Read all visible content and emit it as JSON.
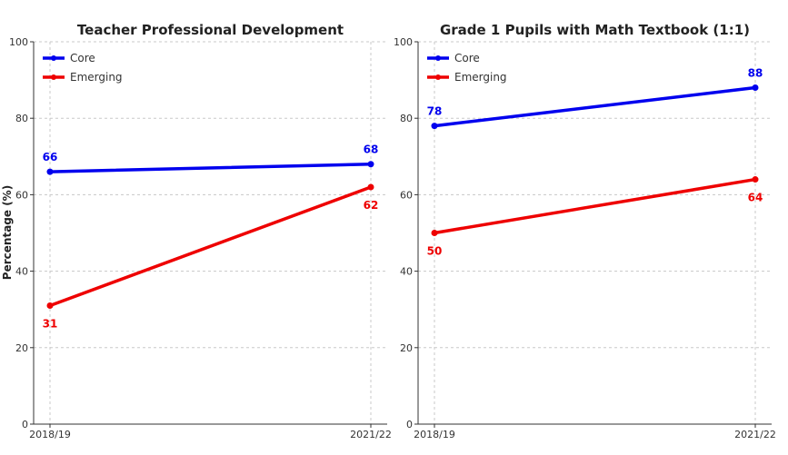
{
  "ylabel": "Percentage (%)",
  "colors": {
    "Core": "#0000ee",
    "Emerging": "#ee0000"
  },
  "chart_data": [
    {
      "type": "line",
      "title": "Teacher Professional Development",
      "x": [
        "2018/19",
        "2021/22"
      ],
      "ylim": [
        0,
        100
      ],
      "yticks": [
        0,
        20,
        40,
        60,
        80,
        100
      ],
      "grid": true,
      "legend": "top-left",
      "series": [
        {
          "name": "Core",
          "values": [
            66,
            68
          ]
        },
        {
          "name": "Emerging",
          "values": [
            31,
            62
          ]
        }
      ]
    },
    {
      "type": "line",
      "title": "Grade 1 Pupils with Math Textbook (1:1)",
      "x": [
        "2018/19",
        "2021/22"
      ],
      "ylim": [
        0,
        100
      ],
      "yticks": [
        0,
        20,
        40,
        60,
        80,
        100
      ],
      "grid": true,
      "legend": "top-left",
      "series": [
        {
          "name": "Core",
          "values": [
            78,
            88
          ]
        },
        {
          "name": "Emerging",
          "values": [
            50,
            64
          ]
        }
      ]
    }
  ]
}
